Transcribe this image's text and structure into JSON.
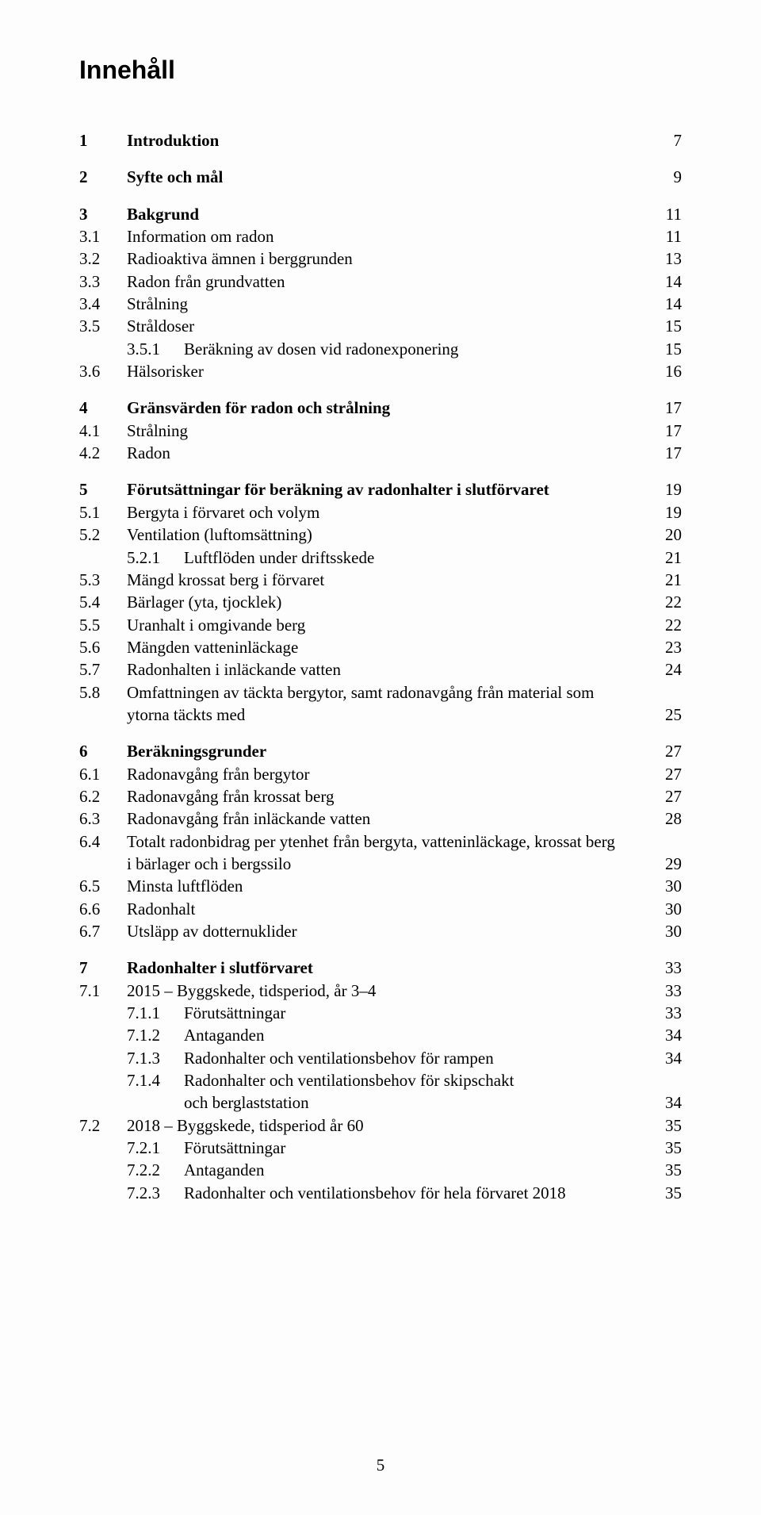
{
  "title": "Innehåll",
  "page_number": "5",
  "toc": [
    {
      "block": [
        {
          "level": 1,
          "num": "1",
          "title": "Introduktion",
          "page": "7"
        }
      ]
    },
    {
      "block": [
        {
          "level": 1,
          "num": "2",
          "title": "Syfte och mål",
          "page": "9"
        }
      ]
    },
    {
      "block": [
        {
          "level": 1,
          "num": "3",
          "title": "Bakgrund",
          "page": "11"
        },
        {
          "level": 2,
          "num": "3.1",
          "title": "Information om radon",
          "page": "11"
        },
        {
          "level": 2,
          "num": "3.2",
          "title": "Radioaktiva ämnen i berggrunden",
          "page": "13"
        },
        {
          "level": 2,
          "num": "3.3",
          "title": "Radon från grundvatten",
          "page": "14"
        },
        {
          "level": 2,
          "num": "3.4",
          "title": "Strålning",
          "page": "14"
        },
        {
          "level": 2,
          "num": "3.5",
          "title": "Stråldoser",
          "page": "15"
        },
        {
          "level": 3,
          "num": "3.5.1",
          "title": "Beräkning av dosen vid radonexponering",
          "page": "15"
        },
        {
          "level": 2,
          "num": "3.6",
          "title": "Hälsorisker",
          "page": "16"
        }
      ]
    },
    {
      "block": [
        {
          "level": 1,
          "num": "4",
          "title": "Gränsvärden för radon och strålning",
          "page": "17"
        },
        {
          "level": 2,
          "num": "4.1",
          "title": "Strålning",
          "page": "17"
        },
        {
          "level": 2,
          "num": "4.2",
          "title": "Radon",
          "page": "17"
        }
      ]
    },
    {
      "block": [
        {
          "level": 1,
          "num": "5",
          "title": "Förutsättningar för beräkning av radonhalter i slutförvaret",
          "page": "19"
        },
        {
          "level": 2,
          "num": "5.1",
          "title": "Bergyta i förvaret och volym",
          "page": "19"
        },
        {
          "level": 2,
          "num": "5.2",
          "title": "Ventilation (luftomsättning)",
          "page": "20"
        },
        {
          "level": 3,
          "num": "5.2.1",
          "title": "Luftflöden under driftsskede",
          "page": "21"
        },
        {
          "level": 2,
          "num": "5.3",
          "title": "Mängd krossat berg i förvaret",
          "page": "21"
        },
        {
          "level": 2,
          "num": "5.4",
          "title": "Bärlager (yta, tjocklek)",
          "page": "22"
        },
        {
          "level": 2,
          "num": "5.5",
          "title": "Uranhalt i omgivande berg",
          "page": "22"
        },
        {
          "level": 2,
          "num": "5.6",
          "title": "Mängden vatteninläckage",
          "page": "23"
        },
        {
          "level": 2,
          "num": "5.7",
          "title": "Radonhalten i inläckande vatten",
          "page": "24"
        },
        {
          "level": 2,
          "num": "5.8",
          "title": "Omfattningen av täckta bergytor, samt radonavgång från material som",
          "page": ""
        },
        {
          "level": "cont",
          "num": "",
          "title": "ytorna täckts med",
          "page": "25"
        }
      ]
    },
    {
      "block": [
        {
          "level": 1,
          "num": "6",
          "title": "Beräkningsgrunder",
          "page": "27"
        },
        {
          "level": 2,
          "num": "6.1",
          "title": "Radonavgång från bergytor",
          "page": "27"
        },
        {
          "level": 2,
          "num": "6.2",
          "title": "Radonavgång från krossat berg",
          "page": "27"
        },
        {
          "level": 2,
          "num": "6.3",
          "title": "Radonavgång från inläckande vatten",
          "page": "28"
        },
        {
          "level": 2,
          "num": "6.4",
          "title": "Totalt radonbidrag per ytenhet från bergyta, vatteninläckage, krossat berg",
          "page": ""
        },
        {
          "level": "cont",
          "num": "",
          "title": "i bärlager och i bergssilo",
          "page": "29"
        },
        {
          "level": 2,
          "num": "6.5",
          "title": "Minsta luftflöden",
          "page": "30"
        },
        {
          "level": 2,
          "num": "6.6",
          "title": "Radonhalt",
          "page": "30"
        },
        {
          "level": 2,
          "num": "6.7",
          "title": "Utsläpp av dotternuklider",
          "page": "30"
        }
      ]
    },
    {
      "block": [
        {
          "level": 1,
          "num": "7",
          "title": "Radonhalter i slutförvaret",
          "page": "33"
        },
        {
          "level": 2,
          "num": "7.1",
          "title": "2015 – Byggskede, tidsperiod, år 3–4",
          "page": "33"
        },
        {
          "level": 3,
          "num": "7.1.1",
          "title": "Förutsättningar",
          "page": "33"
        },
        {
          "level": 3,
          "num": "7.1.2",
          "title": "Antaganden",
          "page": "34"
        },
        {
          "level": 3,
          "num": "7.1.3",
          "title": "Radonhalter och ventilationsbehov för rampen",
          "page": "34"
        },
        {
          "level": 3,
          "num": "7.1.4",
          "title": "Radonhalter och ventilationsbehov för skipschakt",
          "page": ""
        },
        {
          "level": "cont3",
          "num": "",
          "title": "och berglaststation",
          "page": "34"
        },
        {
          "level": 2,
          "num": "7.2",
          "title": "2018 – Byggskede, tidsperiod år 60",
          "page": "35"
        },
        {
          "level": 3,
          "num": "7.2.1",
          "title": "Förutsättningar",
          "page": "35"
        },
        {
          "level": 3,
          "num": "7.2.2",
          "title": "Antaganden",
          "page": "35"
        },
        {
          "level": 3,
          "num": "7.2.3",
          "title": "Radonhalter och ventilationsbehov för hela förvaret 2018",
          "page": "35"
        }
      ]
    }
  ]
}
